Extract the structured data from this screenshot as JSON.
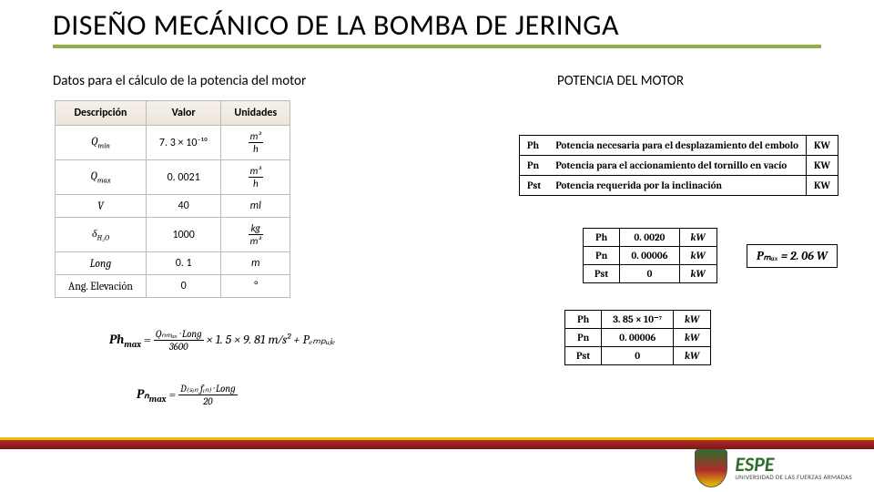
{
  "title": "DISEÑO MECÁNICO DE LA BOMBA DE JERINGA",
  "subtitleLeft": "Datos para el cálculo de la potencia del motor",
  "subtitleRight": "POTENCIA DEL MOTOR",
  "dataTable": {
    "headers": [
      "Descripción",
      "Valor",
      "Unidades"
    ],
    "rows": [
      {
        "desc": "Q",
        "sub": "min",
        "val": "7. 3 × 10⁻¹⁰",
        "unit_n": "m³",
        "unit_d": "h"
      },
      {
        "desc": "Q",
        "sub": "max",
        "val": "0. 0021",
        "unit_n": "m³",
        "unit_d": "h"
      },
      {
        "desc": "V",
        "sub": "",
        "val": "40",
        "unit_plain": "ml"
      },
      {
        "desc": "δ",
        "sub": "H₂O",
        "val": "1000",
        "unit_n": "kg",
        "unit_d": "m³"
      },
      {
        "desc": "Long",
        "sub": "",
        "val": "0. 1",
        "unit_plain": "m"
      },
      {
        "desc_plain": "Ang. Elevación",
        "val": "0",
        "unit_plain": "°"
      }
    ]
  },
  "defTable": {
    "rows": [
      {
        "sym": "Ph",
        "text": "Potencia necesaria para el desplazamiento del embolo",
        "unit": "KW"
      },
      {
        "sym": "Pn",
        "text": "Potencia para el accionamiento del tornillo en vacío",
        "unit": "KW"
      },
      {
        "sym": "Pst",
        "text": "Potencia requerida por la inclinación",
        "unit": "KW"
      }
    ]
  },
  "results1": {
    "rows": [
      {
        "sym": "Ph",
        "val": "0. 0020",
        "unit": "kW"
      },
      {
        "sym": "Pn",
        "val": "0. 00006",
        "unit": "kW"
      },
      {
        "sym": "Pst",
        "val": "0",
        "unit": "kW"
      }
    ]
  },
  "pmax": "Pₘₐₓ = 2. 06 W",
  "results2": {
    "rows": [
      {
        "sym": "Ph",
        "val": "3. 85 × 10⁻⁷",
        "unit": "kW"
      },
      {
        "sym": "Pn",
        "val": "0. 00006",
        "unit": "kW"
      },
      {
        "sym": "Pst",
        "val": "0",
        "unit": "kW"
      }
    ]
  },
  "equations": {
    "e1_lhs": "Ph",
    "e1_sub": "max",
    "e1_num": "Qₙₘₐₓ · Long",
    "e1_den": "3600",
    "e1_tail": " × 1. 5 × 9. 81 m⁄s² + Pₑₘₚᵤⱼₑ",
    "e2_lhs": "Pₙ",
    "e2_sub": "max",
    "e2_num": "D₍ₛᵢₙ fᵢₙ₎ · Long",
    "e2_den": "20"
  },
  "brand": {
    "big": "ESPE",
    "small": "UNIVERSIDAD DE LAS FUERZAS ARMADAS"
  }
}
